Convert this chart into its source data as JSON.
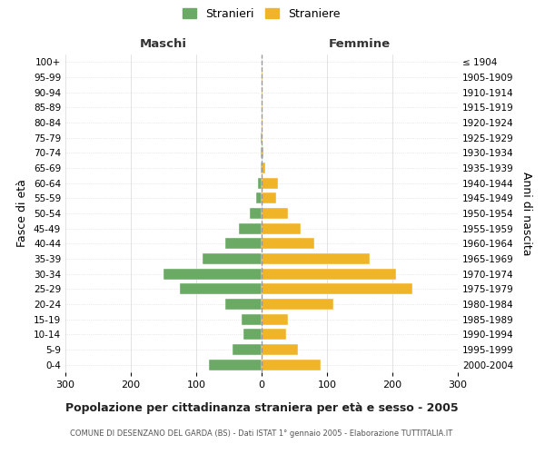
{
  "age_groups": [
    "0-4",
    "5-9",
    "10-14",
    "15-19",
    "20-24",
    "25-29",
    "30-34",
    "35-39",
    "40-44",
    "45-49",
    "50-54",
    "55-59",
    "60-64",
    "65-69",
    "70-74",
    "75-79",
    "80-84",
    "85-89",
    "90-94",
    "95-99",
    "100+"
  ],
  "birth_years": [
    "2000-2004",
    "1995-1999",
    "1990-1994",
    "1985-1989",
    "1980-1984",
    "1975-1979",
    "1970-1974",
    "1965-1969",
    "1960-1964",
    "1955-1959",
    "1950-1954",
    "1945-1949",
    "1940-1944",
    "1935-1939",
    "1930-1934",
    "1925-1929",
    "1920-1924",
    "1915-1919",
    "1910-1914",
    "1905-1909",
    "≤ 1904"
  ],
  "maschi": [
    80,
    45,
    28,
    30,
    55,
    125,
    150,
    90,
    55,
    35,
    18,
    8,
    5,
    2,
    2,
    1,
    0,
    0,
    0,
    0,
    0
  ],
  "femmine": [
    90,
    55,
    38,
    40,
    110,
    230,
    205,
    165,
    80,
    60,
    40,
    22,
    25,
    5,
    3,
    2,
    1,
    1,
    1,
    1,
    0
  ],
  "color_maschi": "#6aaa64",
  "color_femmine": "#f0b429",
  "background_color": "#ffffff",
  "grid_color": "#cccccc",
  "xlim": 300,
  "title": "Popolazione per cittadinanza straniera per età e sesso - 2005",
  "subtitle": "COMUNE DI DESENZANO DEL GARDA (BS) - Dati ISTAT 1° gennaio 2005 - Elaborazione TUTTITALIA.IT",
  "ylabel_left": "Fasce di età",
  "ylabel_right": "Anni di nascita",
  "label_maschi": "Stranieri",
  "label_femmine": "Straniere",
  "header_maschi": "Maschi",
  "header_femmine": "Femmine"
}
